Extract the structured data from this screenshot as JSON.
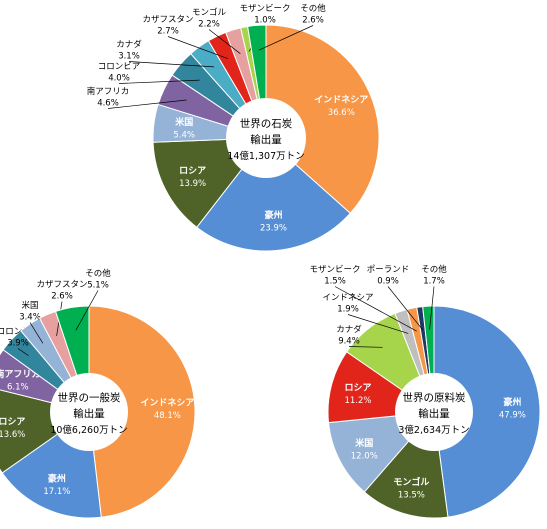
{
  "colors": {
    "orange": "#F79646",
    "blue": "#558ED5",
    "darkgreen": "#4F6228",
    "lightblue": "#95B3D7",
    "purple": "#8064A2",
    "teal": "#31859C",
    "cyan": "#4BACC6",
    "red": "#E1251B",
    "pink": "#E6A0A0",
    "lightgreen": "#A6D44A",
    "gray": "#BFBFBF",
    "navy": "#1F3864",
    "green": "#00B050",
    "white": "#FFFFFF",
    "text": "#000000"
  },
  "chart_data": [
    {
      "type": "pie",
      "variant": "donut",
      "center_label": [
        "世界の石炭",
        "輸出量",
        "14億1,307万トン"
      ],
      "series": [
        {
          "label": "インドネシア",
          "value": 36.6,
          "value_text": "36.6%",
          "color": "orange",
          "label_inside": true
        },
        {
          "label": "豪州",
          "value": 23.9,
          "value_text": "23.9%",
          "color": "blue",
          "label_inside": true
        },
        {
          "label": "ロシア",
          "value": 13.9,
          "value_text": "13.9%",
          "color": "darkgreen",
          "label_inside": true
        },
        {
          "label": "米国",
          "value": 5.4,
          "value_text": "5.4%",
          "color": "lightblue",
          "label_inside": true
        },
        {
          "label": "南アフリカ",
          "value": 4.6,
          "value_text": "4.6%",
          "color": "purple",
          "label_inside": false
        },
        {
          "label": "コロンビア",
          "value": 4.0,
          "value_text": "4.0%",
          "color": "teal",
          "label_inside": false
        },
        {
          "label": "カナダ",
          "value": 3.1,
          "value_text": "3.1%",
          "color": "cyan",
          "label_inside": false
        },
        {
          "label": "カザフスタン",
          "value": 2.7,
          "value_text": "2.7%",
          "color": "red",
          "label_inside": false
        },
        {
          "label": "モンゴル",
          "value": 2.2,
          "value_text": "2.2%",
          "color": "pink",
          "label_inside": false
        },
        {
          "label": "モザンビーク",
          "value": 1.0,
          "value_text": "1.0%",
          "color": "lightgreen",
          "label_inside": false
        },
        {
          "label": "その他",
          "value": 2.6,
          "value_text": "2.6%",
          "color": "green",
          "label_inside": false
        }
      ]
    },
    {
      "type": "pie",
      "variant": "donut",
      "center_label": [
        "世界の一般炭",
        "輸出量",
        "10億6,260万トン"
      ],
      "series": [
        {
          "label": "インドネシア",
          "value": 48.1,
          "value_text": "48.1%",
          "color": "orange",
          "label_inside": true
        },
        {
          "label": "豪州",
          "value": 17.1,
          "value_text": "17.1%",
          "color": "blue",
          "label_inside": true
        },
        {
          "label": "ロシア",
          "value": 13.6,
          "value_text": "13.6%",
          "color": "darkgreen",
          "label_inside": true
        },
        {
          "label": "南アフリカ",
          "value": 6.1,
          "value_text": "6.1%",
          "color": "purple",
          "label_inside": true
        },
        {
          "label": "コロンビア",
          "value": 3.9,
          "value_text": "3.9%",
          "color": "teal",
          "label_inside": false
        },
        {
          "label": "米国",
          "value": 3.4,
          "value_text": "3.4%",
          "color": "lightblue",
          "label_inside": false
        },
        {
          "label": "カザフスタン",
          "value": 2.6,
          "value_text": "2.6%",
          "color": "pink",
          "label_inside": false
        },
        {
          "label": "その他",
          "value": 5.1,
          "value_text": "5.1%",
          "color": "green",
          "label_inside": false
        }
      ]
    },
    {
      "type": "pie",
      "variant": "donut",
      "center_label": [
        "世界の原料炭",
        "輸出量",
        "3億2,634万トン"
      ],
      "series": [
        {
          "label": "豪州",
          "value": 47.9,
          "value_text": "47.9%",
          "color": "blue",
          "label_inside": true
        },
        {
          "label": "モンゴル",
          "value": 13.5,
          "value_text": "13.5%",
          "color": "darkgreen",
          "label_inside": true
        },
        {
          "label": "米国",
          "value": 12.0,
          "value_text": "12.0%",
          "color": "lightblue",
          "label_inside": true
        },
        {
          "label": "ロシア",
          "value": 11.2,
          "value_text": "11.2%",
          "color": "red",
          "label_inside": true
        },
        {
          "label": "カナダ",
          "value": 9.4,
          "value_text": "9.4%",
          "color": "lightgreen",
          "label_inside": false
        },
        {
          "label": "インドネシア",
          "value": 1.9,
          "value_text": "1.9%",
          "color": "gray",
          "label_inside": false
        },
        {
          "label": "モザンビーク",
          "value": 1.5,
          "value_text": "1.5%",
          "color": "orange",
          "label_inside": false
        },
        {
          "label": "ポーランド",
          "value": 0.9,
          "value_text": "0.9%",
          "color": "navy",
          "label_inside": false
        },
        {
          "label": "その他",
          "value": 1.7,
          "value_text": "1.7%",
          "color": "green",
          "label_inside": false
        }
      ]
    }
  ]
}
